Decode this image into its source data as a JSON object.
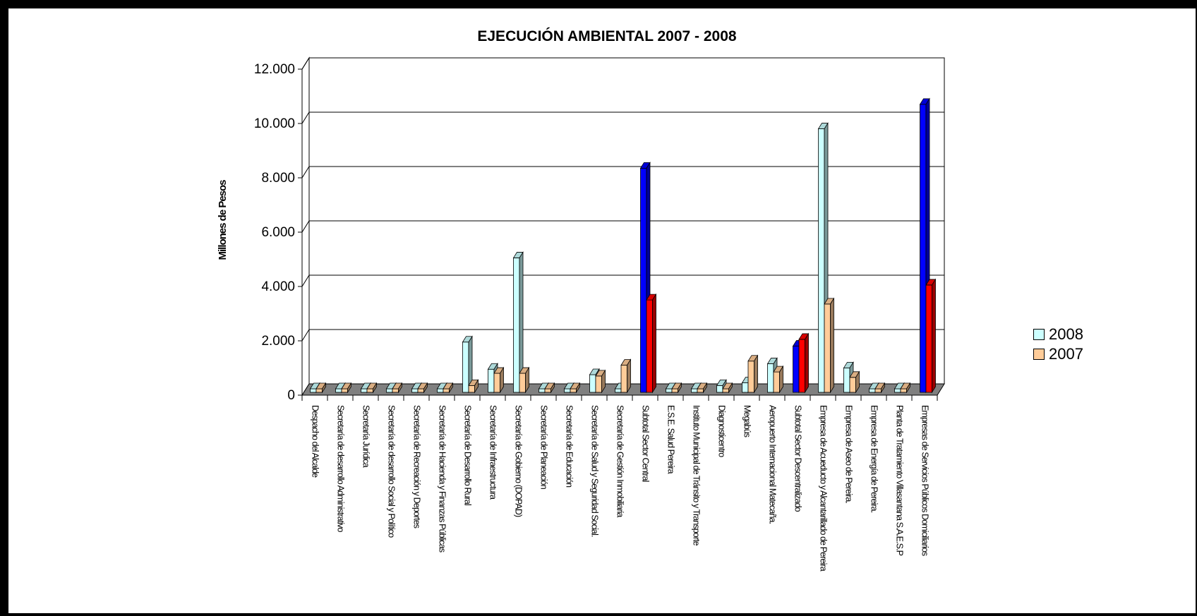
{
  "chart_data": {
    "type": "bar",
    "title": "EJECUCIÓN AMBIENTAL 2007 - 2008",
    "ylabel": "Millones de Pesos",
    "xlabel": "",
    "ylim": [
      0,
      12000
    ],
    "yticks": [
      "0",
      "2.000",
      "4.000",
      "6.000",
      "8.000",
      "10.000",
      "12.000"
    ],
    "grid": true,
    "legend_position": "right",
    "categories": [
      "Despacho del Alcalde",
      "Secretaría de desarrollo Administrativo",
      "Secretaría Jurídica",
      "Secretaría de desarrollo Social y Político",
      "Secretaría de Recreación y Deportes",
      "Secretaría de Hacienda y Finanzas Públicas",
      "Secretaría de Desarrollo Rural",
      "Secretaría de Infraestructura",
      "Secretaría de Gobierno (DOPAD)",
      "Secretaría de Planeación",
      "Secretaría de Educación",
      "Secretaría de Salud y Seguridad Social.",
      "Secretaría de Gestión Inmobiliaria",
      "Subtotal Sector Central",
      "E.S.E. Salud Pereira",
      "Instituto Municipal de Tránsito y Transporte",
      "Diagnosticentro",
      "Megabús",
      "Aeropuerto Internacional Matecaña.",
      "Subtotal Sector Descentralizado",
      "Empresa de Acueducto y Alcantarillado de Pereira",
      "Empresa de Aseo de Pereira.",
      "Empresa de Energía de Pereira.",
      "Planta de Tratamiento Villasantana S.A.E.S.P",
      "Empresas de Servicios Públicos Domiciliarios"
    ],
    "series": [
      {
        "name": "2008",
        "color": "#CCFFFF",
        "values": [
          0,
          0,
          0,
          0,
          0,
          0,
          1850,
          850,
          4950,
          50,
          0,
          650,
          0,
          8250,
          50,
          0,
          250,
          350,
          1050,
          1700,
          9700,
          900,
          0,
          0,
          10600
        ]
      },
      {
        "name": "2007",
        "color": "#FFCC99",
        "values": [
          0,
          0,
          0,
          0,
          0,
          100,
          250,
          700,
          700,
          100,
          0,
          600,
          1000,
          3400,
          100,
          0,
          100,
          1150,
          750,
          1950,
          3250,
          550,
          100,
          0,
          3950
        ]
      }
    ],
    "highlight": {
      "categories": [
        "Subtotal Sector Central",
        "Subtotal Sector Descentralizado",
        "Empresas de Servicios Públicos Domiciliarios"
      ],
      "series_colors": {
        "2008": "#0000FF",
        "2007": "#FF0000"
      }
    }
  }
}
